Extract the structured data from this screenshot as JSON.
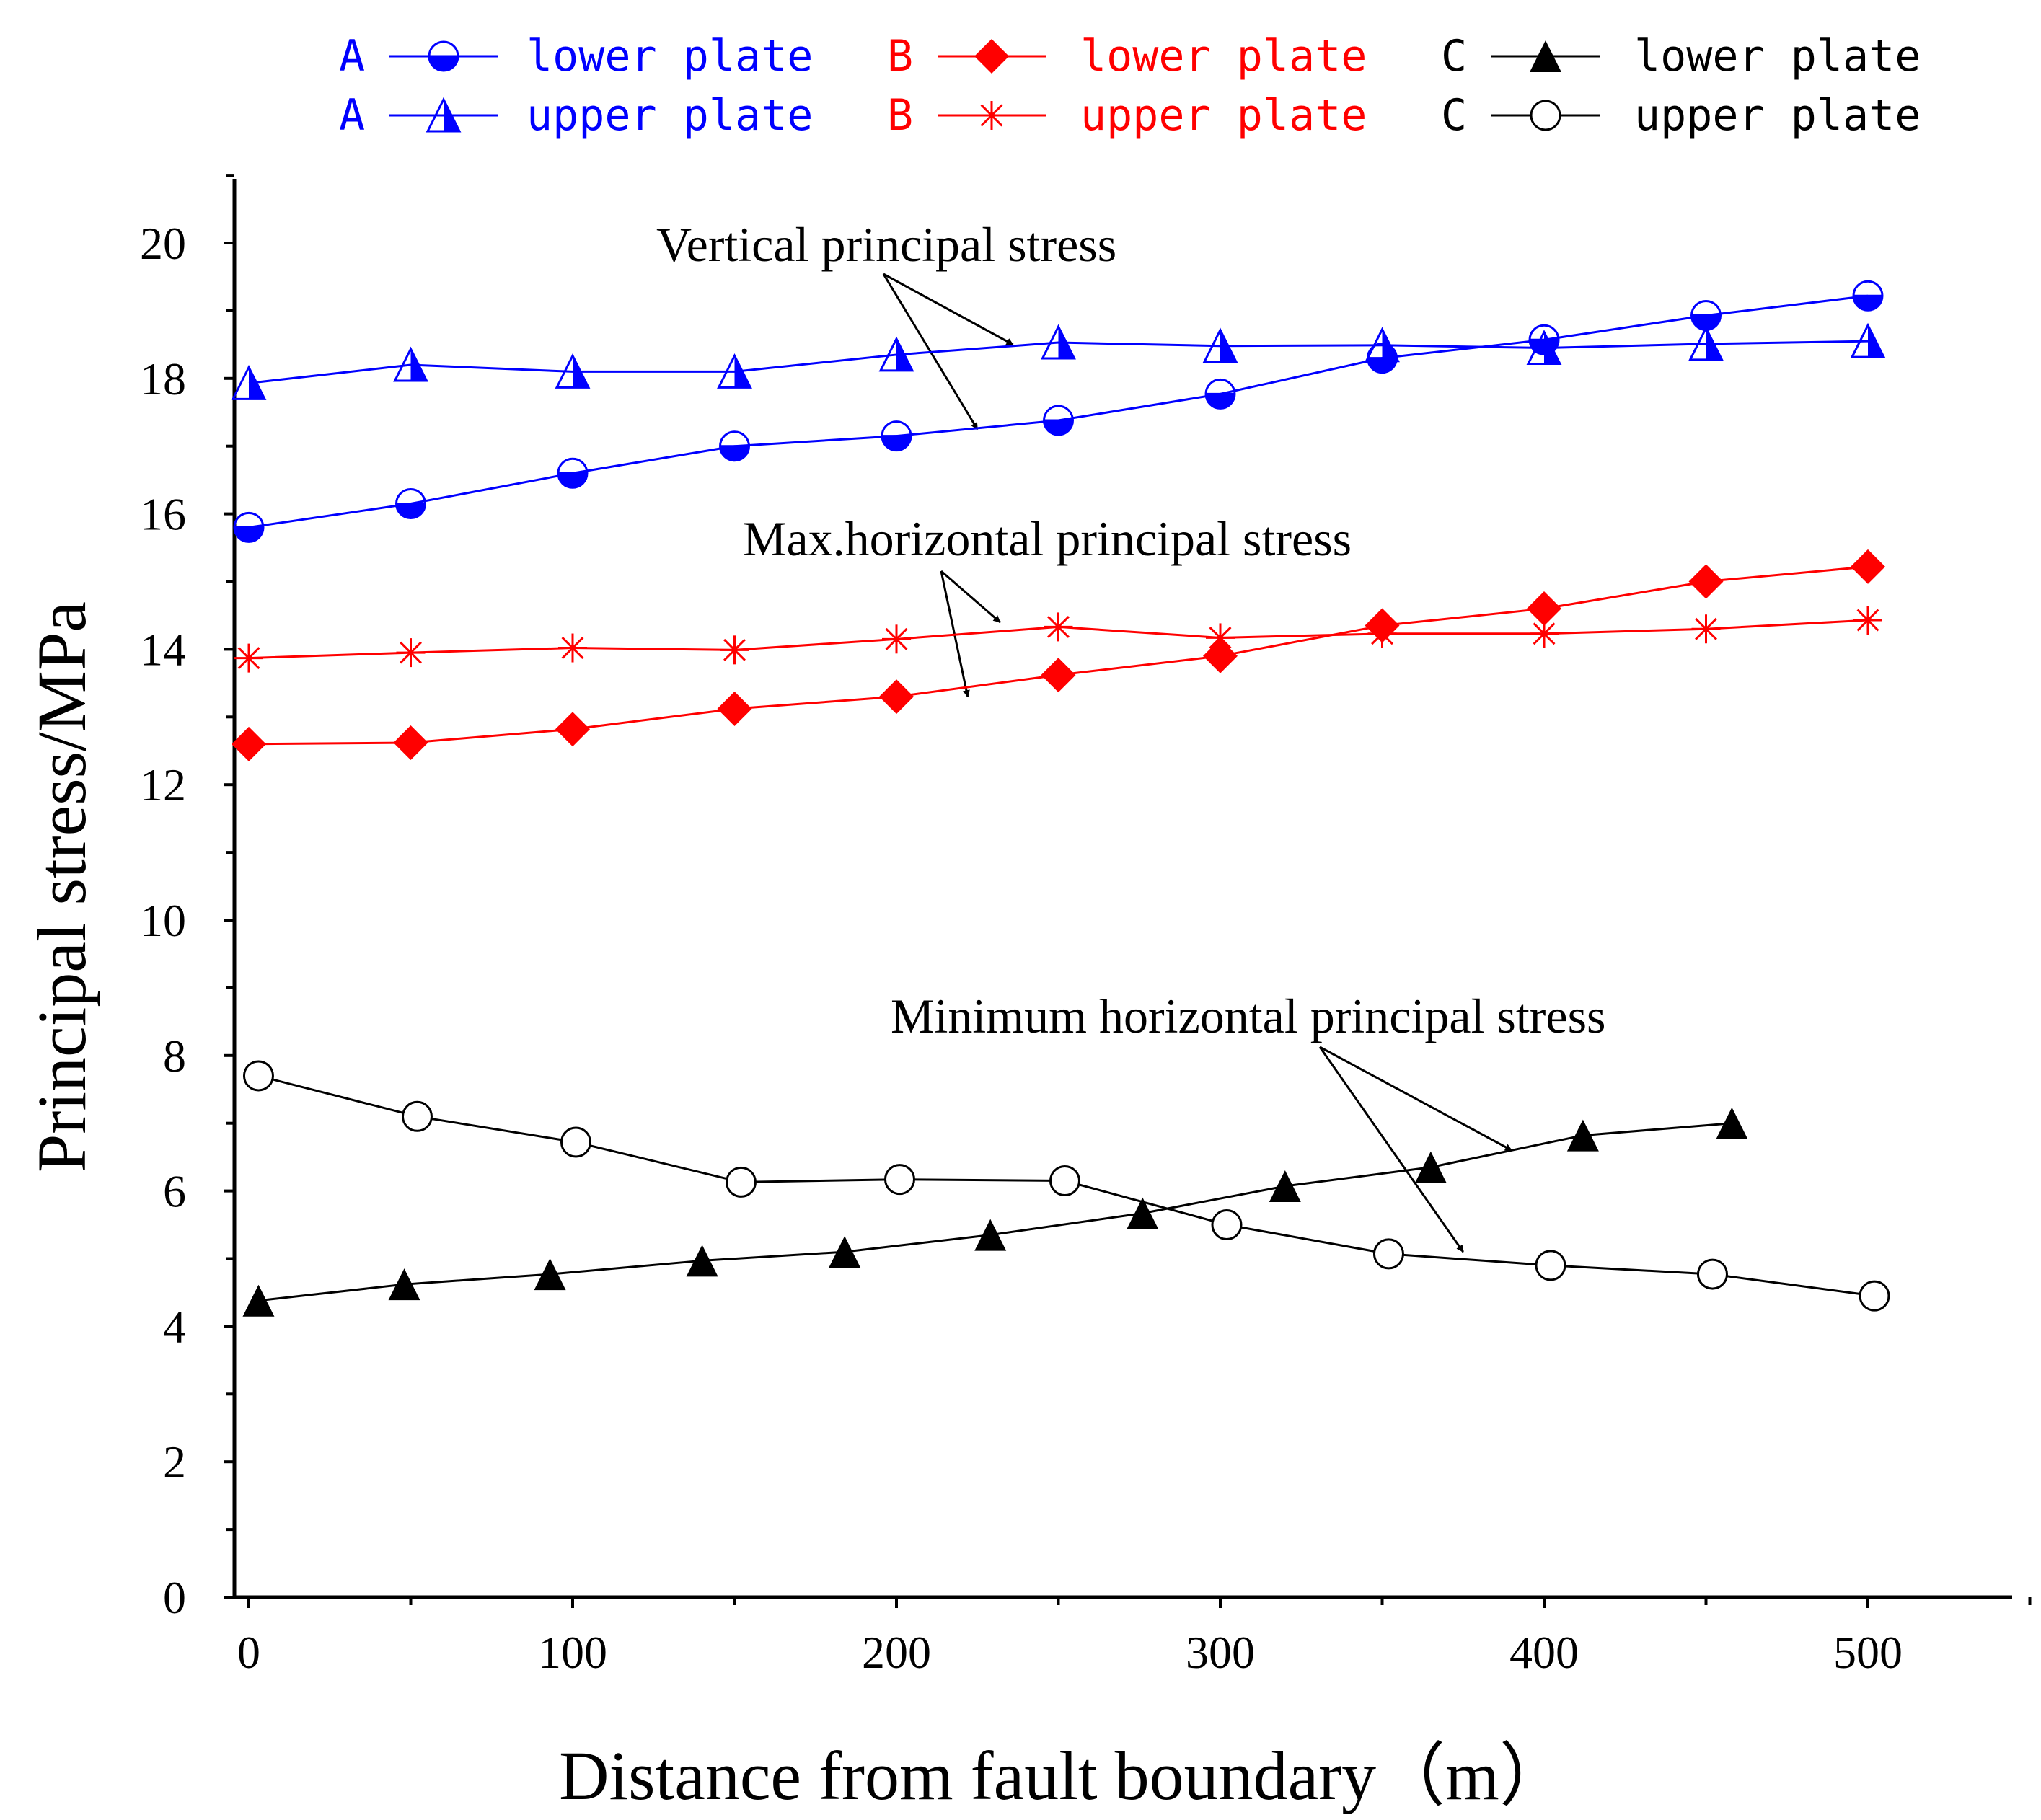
{
  "chart_data": {
    "type": "line",
    "title": "",
    "xlabel": "Distance from fault boundary（m）",
    "ylabel": "Principal stress/MPa",
    "xlim": [
      -5,
      550
    ],
    "ylim": [
      0,
      21
    ],
    "x_ticks": [
      0,
      100,
      200,
      300,
      400,
      500
    ],
    "x_tick_labels": [
      "0",
      "100",
      "200",
      "300",
      "400",
      "500"
    ],
    "y_ticks": [
      0,
      2,
      4,
      6,
      8,
      10,
      12,
      14,
      16,
      18,
      20
    ],
    "y_tick_labels": [
      "0",
      "2",
      "4",
      "6",
      "8",
      "10",
      "12",
      "14",
      "16",
      "18",
      "20"
    ],
    "grid": false,
    "legend_position": "top",
    "series": [
      {
        "name": "A lower plate",
        "group": "A",
        "label": "lower plate",
        "color": "#0000ff",
        "marker": "half-circle",
        "x": [
          0,
          50,
          100,
          150,
          200,
          250,
          300,
          350,
          400,
          450,
          500
        ],
        "y": [
          15.8,
          16.15,
          16.6,
          17.0,
          17.15,
          17.38,
          17.77,
          18.3,
          18.57,
          18.93,
          19.22
        ]
      },
      {
        "name": "A upper plate",
        "group": "A",
        "label": "upper plate",
        "color": "#0000ff",
        "marker": "half-triangle",
        "x": [
          0,
          50,
          100,
          150,
          200,
          250,
          300,
          350,
          400,
          450,
          500
        ],
        "y": [
          17.93,
          18.2,
          18.1,
          18.1,
          18.35,
          18.53,
          18.48,
          18.49,
          18.45,
          18.51,
          18.55
        ]
      },
      {
        "name": "B lower plate",
        "group": "B",
        "label": "lower plate",
        "color": "#ff0000",
        "marker": "diamond",
        "x": [
          0,
          50,
          100,
          150,
          200,
          250,
          300,
          350,
          400,
          450,
          500
        ],
        "y": [
          12.6,
          12.62,
          12.82,
          13.12,
          13.3,
          13.62,
          13.9,
          14.35,
          14.6,
          15.0,
          15.22
        ]
      },
      {
        "name": "B upper plate",
        "group": "B",
        "label": "upper plate",
        "color": "#ff0000",
        "marker": "asterisk",
        "x": [
          0,
          50,
          100,
          150,
          200,
          250,
          300,
          350,
          400,
          450,
          500
        ],
        "y": [
          13.87,
          13.95,
          14.02,
          13.99,
          14.15,
          14.33,
          14.17,
          14.23,
          14.23,
          14.3,
          14.43
        ]
      },
      {
        "name": "C lower plate",
        "group": "C",
        "label": "lower plate",
        "color": "#000000",
        "marker": "triangle",
        "x": [
          3,
          48,
          93,
          140,
          184,
          229,
          276,
          320,
          365,
          412,
          458
        ],
        "y": [
          4.38,
          4.62,
          4.77,
          4.97,
          5.1,
          5.35,
          5.67,
          6.07,
          6.35,
          6.82,
          7.0
        ]
      },
      {
        "name": "C upper plate",
        "group": "C",
        "label": "upper plate",
        "color": "#000000",
        "marker": "circle-open",
        "x": [
          3,
          52,
          101,
          152,
          201,
          252,
          302,
          352,
          402,
          452,
          502
        ],
        "y": [
          7.7,
          7.1,
          6.72,
          6.13,
          6.17,
          6.15,
          5.5,
          5.07,
          4.9,
          4.77,
          4.45
        ]
      }
    ],
    "annotations": [
      {
        "text": "Vertical principal stress",
        "arrows_to": [
          [
            236,
            18.5
          ],
          [
            225,
            17.25
          ]
        ]
      },
      {
        "text": "Max.horizontal principal stress",
        "arrows_to": [
          [
            232,
            14.4
          ],
          [
            222,
            13.3
          ]
        ]
      },
      {
        "text": "Minimum horizontal principal stress",
        "arrows_to": [
          [
            390,
            6.6
          ],
          [
            375,
            5.1
          ]
        ]
      }
    ]
  }
}
